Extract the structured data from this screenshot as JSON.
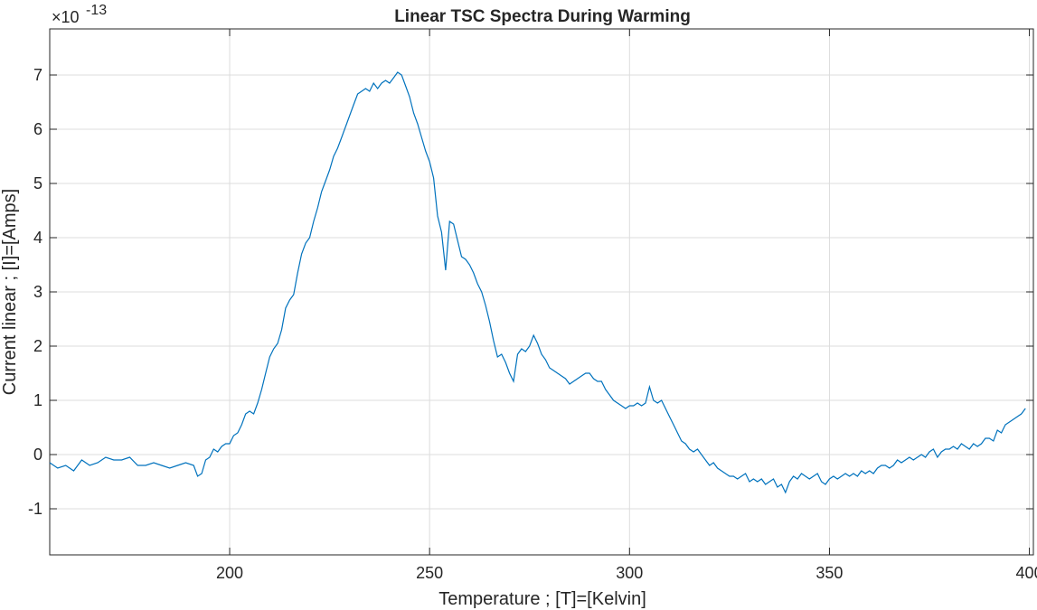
{
  "chart_data": {
    "type": "line",
    "title": "Linear TSC Spectra During Warming",
    "xlabel": "Temperature ; [T]=[Kelvin]",
    "ylabel": "Current linear ; [I]=[Amps]",
    "y_exponent_base": "×10",
    "y_exponent_power": "-13",
    "xlim": [
      155,
      401
    ],
    "ylim": [
      -1.85,
      7.85
    ],
    "x_ticks": [
      200,
      250,
      300,
      350,
      400
    ],
    "y_ticks": [
      -1,
      0,
      1,
      2,
      3,
      4,
      5,
      6,
      7
    ],
    "grid": true,
    "line_color": "#0072BD",
    "series": [
      {
        "points": [
          [
            155,
            -0.15
          ],
          [
            157,
            -0.25
          ],
          [
            159,
            -0.2
          ],
          [
            161,
            -0.3
          ],
          [
            163,
            -0.1
          ],
          [
            165,
            -0.2
          ],
          [
            167,
            -0.15
          ],
          [
            169,
            -0.05
          ],
          [
            171,
            -0.1
          ],
          [
            173,
            -0.1
          ],
          [
            175,
            -0.05
          ],
          [
            177,
            -0.2
          ],
          [
            179,
            -0.2
          ],
          [
            181,
            -0.15
          ],
          [
            183,
            -0.2
          ],
          [
            185,
            -0.25
          ],
          [
            187,
            -0.2
          ],
          [
            189,
            -0.15
          ],
          [
            191,
            -0.2
          ],
          [
            192,
            -0.4
          ],
          [
            193,
            -0.35
          ],
          [
            194,
            -0.1
          ],
          [
            195,
            -0.05
          ],
          [
            196,
            0.1
          ],
          [
            197,
            0.05
          ],
          [
            198,
            0.15
          ],
          [
            199,
            0.2
          ],
          [
            200,
            0.2
          ],
          [
            201,
            0.35
          ],
          [
            202,
            0.4
          ],
          [
            203,
            0.55
          ],
          [
            204,
            0.75
          ],
          [
            205,
            0.8
          ],
          [
            206,
            0.75
          ],
          [
            207,
            0.95
          ],
          [
            208,
            1.2
          ],
          [
            209,
            1.5
          ],
          [
            210,
            1.8
          ],
          [
            211,
            1.95
          ],
          [
            212,
            2.05
          ],
          [
            213,
            2.3
          ],
          [
            214,
            2.7
          ],
          [
            215,
            2.85
          ],
          [
            216,
            2.95
          ],
          [
            217,
            3.35
          ],
          [
            218,
            3.7
          ],
          [
            219,
            3.9
          ],
          [
            220,
            4.0
          ],
          [
            221,
            4.3
          ],
          [
            222,
            4.55
          ],
          [
            223,
            4.85
          ],
          [
            224,
            5.05
          ],
          [
            225,
            5.25
          ],
          [
            226,
            5.5
          ],
          [
            227,
            5.65
          ],
          [
            228,
            5.85
          ],
          [
            229,
            6.05
          ],
          [
            230,
            6.25
          ],
          [
            231,
            6.45
          ],
          [
            232,
            6.65
          ],
          [
            233,
            6.7
          ],
          [
            234,
            6.75
          ],
          [
            235,
            6.7
          ],
          [
            236,
            6.85
          ],
          [
            237,
            6.75
          ],
          [
            238,
            6.85
          ],
          [
            239,
            6.9
          ],
          [
            240,
            6.85
          ],
          [
            241,
            6.95
          ],
          [
            242,
            7.05
          ],
          [
            243,
            7.0
          ],
          [
            244,
            6.8
          ],
          [
            245,
            6.6
          ],
          [
            246,
            6.3
          ],
          [
            247,
            6.1
          ],
          [
            248,
            5.85
          ],
          [
            249,
            5.6
          ],
          [
            250,
            5.4
          ],
          [
            251,
            5.1
          ],
          [
            252,
            4.4
          ],
          [
            253,
            4.1
          ],
          [
            254,
            3.4
          ],
          [
            255,
            4.3
          ],
          [
            256,
            4.25
          ],
          [
            257,
            3.95
          ],
          [
            258,
            3.65
          ],
          [
            259,
            3.6
          ],
          [
            260,
            3.5
          ],
          [
            261,
            3.35
          ],
          [
            262,
            3.15
          ],
          [
            263,
            3.0
          ],
          [
            264,
            2.75
          ],
          [
            265,
            2.45
          ],
          [
            266,
            2.1
          ],
          [
            267,
            1.8
          ],
          [
            268,
            1.85
          ],
          [
            269,
            1.7
          ],
          [
            270,
            1.5
          ],
          [
            271,
            1.35
          ],
          [
            272,
            1.85
          ],
          [
            273,
            1.95
          ],
          [
            274,
            1.9
          ],
          [
            275,
            2.0
          ],
          [
            276,
            2.2
          ],
          [
            277,
            2.05
          ],
          [
            278,
            1.85
          ],
          [
            279,
            1.75
          ],
          [
            280,
            1.6
          ],
          [
            281,
            1.55
          ],
          [
            282,
            1.5
          ],
          [
            283,
            1.45
          ],
          [
            284,
            1.4
          ],
          [
            285,
            1.3
          ],
          [
            286,
            1.35
          ],
          [
            287,
            1.4
          ],
          [
            288,
            1.45
          ],
          [
            289,
            1.5
          ],
          [
            290,
            1.5
          ],
          [
            291,
            1.4
          ],
          [
            292,
            1.35
          ],
          [
            293,
            1.35
          ],
          [
            294,
            1.2
          ],
          [
            295,
            1.1
          ],
          [
            296,
            1.0
          ],
          [
            297,
            0.95
          ],
          [
            298,
            0.9
          ],
          [
            299,
            0.85
          ],
          [
            300,
            0.9
          ],
          [
            301,
            0.9
          ],
          [
            302,
            0.95
          ],
          [
            303,
            0.9
          ],
          [
            304,
            0.95
          ],
          [
            305,
            1.25
          ],
          [
            306,
            1.0
          ],
          [
            307,
            0.95
          ],
          [
            308,
            1.0
          ],
          [
            309,
            0.85
          ],
          [
            310,
            0.7
          ],
          [
            311,
            0.55
          ],
          [
            312,
            0.4
          ],
          [
            313,
            0.25
          ],
          [
            314,
            0.2
          ],
          [
            315,
            0.1
          ],
          [
            316,
            0.05
          ],
          [
            317,
            0.1
          ],
          [
            318,
            0.0
          ],
          [
            319,
            -0.1
          ],
          [
            320,
            -0.2
          ],
          [
            321,
            -0.15
          ],
          [
            322,
            -0.25
          ],
          [
            323,
            -0.3
          ],
          [
            324,
            -0.35
          ],
          [
            325,
            -0.4
          ],
          [
            326,
            -0.4
          ],
          [
            327,
            -0.45
          ],
          [
            328,
            -0.4
          ],
          [
            329,
            -0.35
          ],
          [
            330,
            -0.5
          ],
          [
            331,
            -0.45
          ],
          [
            332,
            -0.5
          ],
          [
            333,
            -0.45
          ],
          [
            334,
            -0.55
          ],
          [
            335,
            -0.5
          ],
          [
            336,
            -0.45
          ],
          [
            337,
            -0.6
          ],
          [
            338,
            -0.55
          ],
          [
            339,
            -0.7
          ],
          [
            340,
            -0.5
          ],
          [
            341,
            -0.4
          ],
          [
            342,
            -0.45
          ],
          [
            343,
            -0.35
          ],
          [
            344,
            -0.4
          ],
          [
            345,
            -0.45
          ],
          [
            346,
            -0.4
          ],
          [
            347,
            -0.35
          ],
          [
            348,
            -0.5
          ],
          [
            349,
            -0.55
          ],
          [
            350,
            -0.45
          ],
          [
            351,
            -0.4
          ],
          [
            352,
            -0.45
          ],
          [
            353,
            -0.4
          ],
          [
            354,
            -0.35
          ],
          [
            355,
            -0.4
          ],
          [
            356,
            -0.35
          ],
          [
            357,
            -0.4
          ],
          [
            358,
            -0.3
          ],
          [
            359,
            -0.35
          ],
          [
            360,
            -0.3
          ],
          [
            361,
            -0.35
          ],
          [
            362,
            -0.25
          ],
          [
            363,
            -0.2
          ],
          [
            364,
            -0.2
          ],
          [
            365,
            -0.25
          ],
          [
            366,
            -0.2
          ],
          [
            367,
            -0.1
          ],
          [
            368,
            -0.15
          ],
          [
            369,
            -0.1
          ],
          [
            370,
            -0.05
          ],
          [
            371,
            -0.1
          ],
          [
            372,
            -0.05
          ],
          [
            373,
            0.0
          ],
          [
            374,
            -0.05
          ],
          [
            375,
            0.05
          ],
          [
            376,
            0.1
          ],
          [
            377,
            -0.05
          ],
          [
            378,
            0.05
          ],
          [
            379,
            0.1
          ],
          [
            380,
            0.1
          ],
          [
            381,
            0.15
          ],
          [
            382,
            0.1
          ],
          [
            383,
            0.2
          ],
          [
            384,
            0.15
          ],
          [
            385,
            0.1
          ],
          [
            386,
            0.2
          ],
          [
            387,
            0.15
          ],
          [
            388,
            0.2
          ],
          [
            389,
            0.3
          ],
          [
            390,
            0.3
          ],
          [
            391,
            0.25
          ],
          [
            392,
            0.45
          ],
          [
            393,
            0.4
          ],
          [
            394,
            0.55
          ],
          [
            395,
            0.6
          ],
          [
            396,
            0.65
          ],
          [
            397,
            0.7
          ],
          [
            398,
            0.75
          ],
          [
            399,
            0.85
          ]
        ]
      }
    ]
  }
}
